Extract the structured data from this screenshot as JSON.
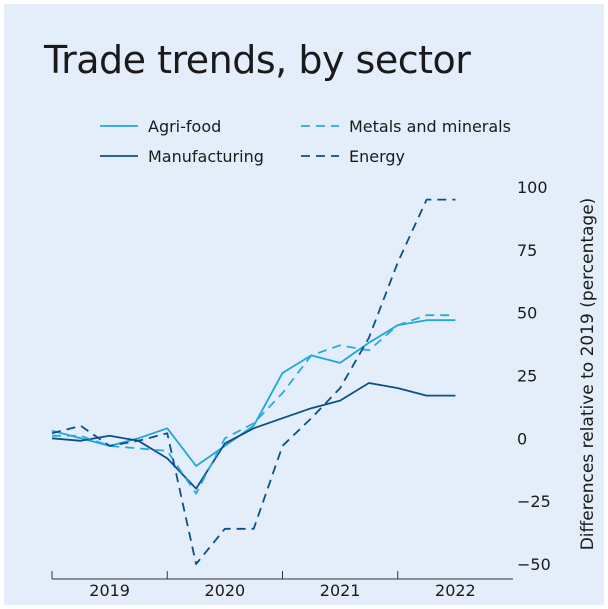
{
  "chart_data": {
    "type": "line",
    "title": "Trade trends, by sector",
    "ylabel": "Differences relative to 2019 (percentage)",
    "xlabel": "",
    "ylim": [
      -50,
      100
    ],
    "yticks": [
      -50,
      -25,
      0,
      25,
      50,
      75,
      100
    ],
    "ytick_labels": [
      "−50",
      "−25",
      "0",
      "25",
      "50",
      "75",
      "100"
    ],
    "x_domain": [
      2018.5,
      2022.5
    ],
    "x_tick_labels": [
      {
        "label": "2019",
        "x": 2019
      },
      {
        "label": "2020",
        "x": 2020
      },
      {
        "label": "2021",
        "x": 2021
      },
      {
        "label": "2022",
        "x": 2022
      }
    ],
    "x_dividers": [
      2018.5,
      2019.5,
      2020.5,
      2021.5
    ],
    "grid": false,
    "legend": "top",
    "series": [
      {
        "name": "Agri-food",
        "color": "#1fa6dc",
        "dash": "solid",
        "x": [
          2018.5,
          2018.75,
          2019.0,
          2019.25,
          2019.5,
          2019.75,
          2020.0,
          2020.25,
          2020.5,
          2020.75,
          2021.0,
          2021.25,
          2021.5,
          2021.75,
          2022.0
        ],
        "y": [
          3,
          0,
          -3,
          0,
          4,
          -11,
          -3,
          5,
          26,
          33,
          30,
          38,
          45,
          47,
          47
        ]
      },
      {
        "name": "Manufacturing",
        "color": "#0d4f8b",
        "dash": "solid",
        "x": [
          2018.5,
          2018.75,
          2019.0,
          2019.25,
          2019.5,
          2019.75,
          2020.0,
          2020.25,
          2020.5,
          2020.75,
          2021.0,
          2021.25,
          2021.5,
          2021.75,
          2022.0
        ],
        "y": [
          0,
          -1,
          1,
          -1,
          -8,
          -20,
          -2,
          4,
          8,
          12,
          15,
          22,
          20,
          17,
          17
        ]
      },
      {
        "name": "Metals and minerals",
        "color": "#2da9de",
        "dash": "dashed",
        "x": [
          2018.5,
          2018.75,
          2019.0,
          2019.25,
          2019.5,
          2019.75,
          2020.0,
          2020.25,
          2020.5,
          2020.75,
          2021.0,
          2021.25,
          2021.5,
          2021.75,
          2022.0
        ],
        "y": [
          1,
          1,
          -3,
          -4,
          -5,
          -22,
          0,
          6,
          18,
          33,
          37,
          35,
          45,
          49,
          49
        ]
      },
      {
        "name": "Energy",
        "color": "#0d4f8b",
        "dash": "dashed",
        "x": [
          2018.5,
          2018.75,
          2019.0,
          2019.25,
          2019.5,
          2019.75,
          2020.0,
          2020.25,
          2020.5,
          2020.75,
          2021.0,
          2021.25,
          2021.5,
          2021.75,
          2022.0
        ],
        "y": [
          2,
          5,
          -3,
          -1,
          2,
          -50,
          -36,
          -36,
          -3,
          8,
          20,
          40,
          70,
          95,
          95
        ]
      }
    ]
  }
}
